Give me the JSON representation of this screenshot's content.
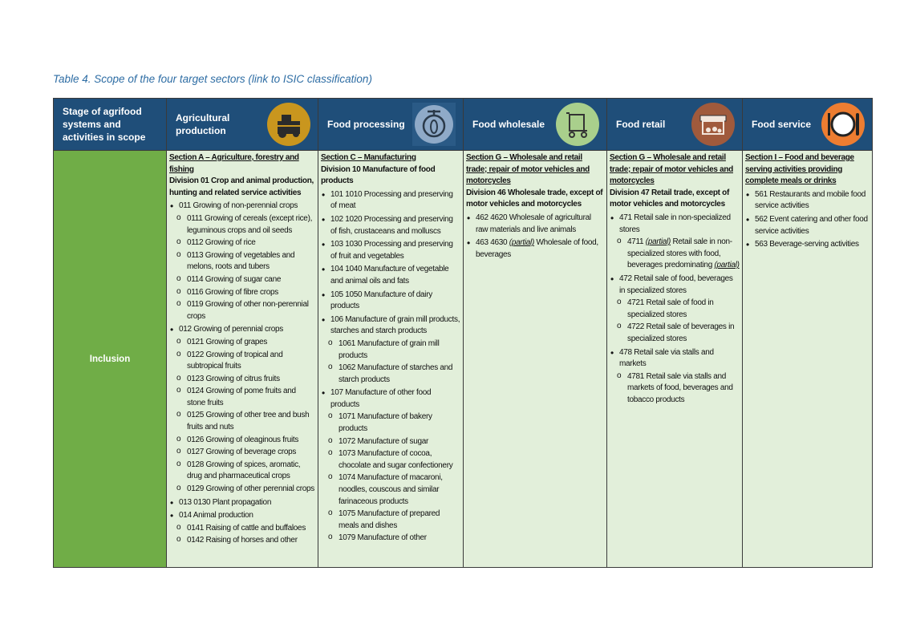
{
  "caption": "Table 4. Scope of the four target sectors (link to ISIC classification)",
  "table": {
    "header": [
      "Stage of agrifood systems and activities in scope",
      "Agricultural production",
      "Food processing",
      "Food wholesale",
      "Food retail",
      "Food service"
    ],
    "row_label": "Inclusion",
    "columns": [
      [
        {
          "kind": "section",
          "text": "Section A – Agriculture, forestry and fishing"
        },
        {
          "kind": "division",
          "text": "Division 01 Crop and animal production, hunting and related service activities"
        },
        {
          "kind": "bullet",
          "text": "011 Growing of non-perennial crops"
        },
        {
          "kind": "sub-bullet",
          "text": "0111 Growing of cereals (except rice), leguminous crops and oil seeds"
        },
        {
          "kind": "sub-bullet",
          "text": "0112 Growing of rice"
        },
        {
          "kind": "sub-bullet",
          "text": "0113 Growing of vegetables and melons, roots and tubers"
        },
        {
          "kind": "sub-bullet",
          "text": "0114 Growing of sugar cane"
        },
        {
          "kind": "sub-bullet",
          "text": "0116 Growing of fibre crops"
        },
        {
          "kind": "sub-bullet",
          "text": "0119 Growing of other non-perennial crops"
        },
        {
          "kind": "bullet",
          "text": "012 Growing of perennial crops"
        },
        {
          "kind": "sub-bullet",
          "text": "0121 Growing of grapes"
        },
        {
          "kind": "sub-bullet",
          "text": "0122 Growing of tropical and subtropical fruits"
        },
        {
          "kind": "sub-bullet",
          "text": "0123 Growing of citrus fruits"
        },
        {
          "kind": "sub-bullet",
          "text": "0124 Growing of pome fruits and stone fruits"
        },
        {
          "kind": "sub-bullet",
          "text": "0125 Growing of other tree and bush fruits and nuts"
        },
        {
          "kind": "sub-bullet",
          "text": "0126 Growing of oleaginous fruits"
        },
        {
          "kind": "sub-bullet",
          "text": "0127 Growing of beverage crops"
        },
        {
          "kind": "sub-bullet",
          "text": "0128 Growing of spices, aromatic, drug and pharmaceutical crops"
        },
        {
          "kind": "sub-bullet",
          "text": "0129 Growing of other perennial crops"
        },
        {
          "kind": "bullet",
          "text": "013 0130 Plant propagation"
        },
        {
          "kind": "bullet",
          "text": "014 Animal production"
        },
        {
          "kind": "sub-bullet",
          "text": "0141 Raising of cattle and buffaloes"
        },
        {
          "kind": "sub-bullet",
          "text": "0142 Raising of horses and other"
        }
      ],
      [
        {
          "kind": "section",
          "text": "Section C – Manufacturing"
        },
        {
          "kind": "division",
          "text": "Division 10 Manufacture of food products"
        },
        {
          "kind": "bullet",
          "text": "101 1010 Processing and preserving of meat"
        },
        {
          "kind": "bullet",
          "text": "102 1020 Processing and preserving of fish, crustaceans and molluscs"
        },
        {
          "kind": "bullet",
          "text": "103 1030 Processing and preserving of fruit and vegetables"
        },
        {
          "kind": "bullet",
          "text": "104 1040 Manufacture of vegetable and animal oils and fats"
        },
        {
          "kind": "bullet",
          "text": "105 1050 Manufacture of dairy products"
        },
        {
          "kind": "bullet",
          "text": "106 Manufacture of grain mill products, starches and starch products"
        },
        {
          "kind": "sub-bullet",
          "text": "1061 Manufacture of grain mill products"
        },
        {
          "kind": "sub-bullet",
          "text": "1062 Manufacture of starches and starch products"
        },
        {
          "kind": "bullet",
          "text": "107 Manufacture of other food products"
        },
        {
          "kind": "sub-bullet",
          "text": "1071 Manufacture of bakery products"
        },
        {
          "kind": "sub-bullet",
          "text": "1072 Manufacture of sugar"
        },
        {
          "kind": "sub-bullet",
          "text": "1073 Manufacture of cocoa, chocolate and sugar confectionery"
        },
        {
          "kind": "sub-bullet",
          "text": "1074 Manufacture of macaroni, noodles, couscous and similar farinaceous products"
        },
        {
          "kind": "sub-bullet",
          "text": "1075 Manufacture of prepared meals and dishes"
        },
        {
          "kind": "sub-bullet",
          "text": "1079 Manufacture of other"
        }
      ],
      [
        {
          "kind": "section",
          "text": "Section G – Wholesale and retail trade; repair of motor vehicles and motorcycles"
        },
        {
          "kind": "division",
          "text": "Division 46 Wholesale trade, except of motor vehicles and motorcycles"
        },
        {
          "kind": "bullet",
          "text": "462 4620 Wholesale of agricultural raw materials and live animals"
        },
        {
          "kind": "bullet",
          "parts": [
            "463 4630 ",
            {
              "emphasis": "(partial)"
            },
            " Wholesale of food, beverages"
          ]
        }
      ],
      [
        {
          "kind": "section",
          "text": "Section G – Wholesale and retail trade; repair of motor vehicles and motorcycles"
        },
        {
          "kind": "division",
          "text": "Division 47 Retail trade, except of motor vehicles and motorcycles"
        },
        {
          "kind": "bullet",
          "text": "471 Retail sale in non-specialized stores"
        },
        {
          "kind": "sub-bullet",
          "parts": [
            "4711 ",
            {
              "emphasis": "(partial)"
            },
            " Retail sale in non- specialized stores with food, beverages predominating ",
            {
              "emphasis": "(partial)"
            }
          ]
        },
        {
          "kind": "bullet",
          "text": "472 Retail sale of food, beverages in specialized stores"
        },
        {
          "kind": "sub-bullet",
          "text": "4721 Retail sale of food in specialized stores"
        },
        {
          "kind": "sub-bullet",
          "text": "4722 Retail sale of beverages in specialized stores"
        },
        {
          "kind": "bullet",
          "text": "478 Retail sale via stalls and markets"
        },
        {
          "kind": "sub-bullet",
          "text": "4781 Retail sale via stalls and markets of food, beverages and tobacco products"
        }
      ],
      [
        {
          "kind": "section",
          "text": "Section I – Food and beverage serving activities providing complete meals or drinks"
        },
        {
          "kind": "bullet",
          "text": "561 Restaurants and mobile food service activities"
        },
        {
          "kind": "bullet",
          "text": "562 Event catering and other food service activities"
        },
        {
          "kind": "bullet",
          "text": "563 Beverage-serving activities"
        }
      ]
    ]
  }
}
